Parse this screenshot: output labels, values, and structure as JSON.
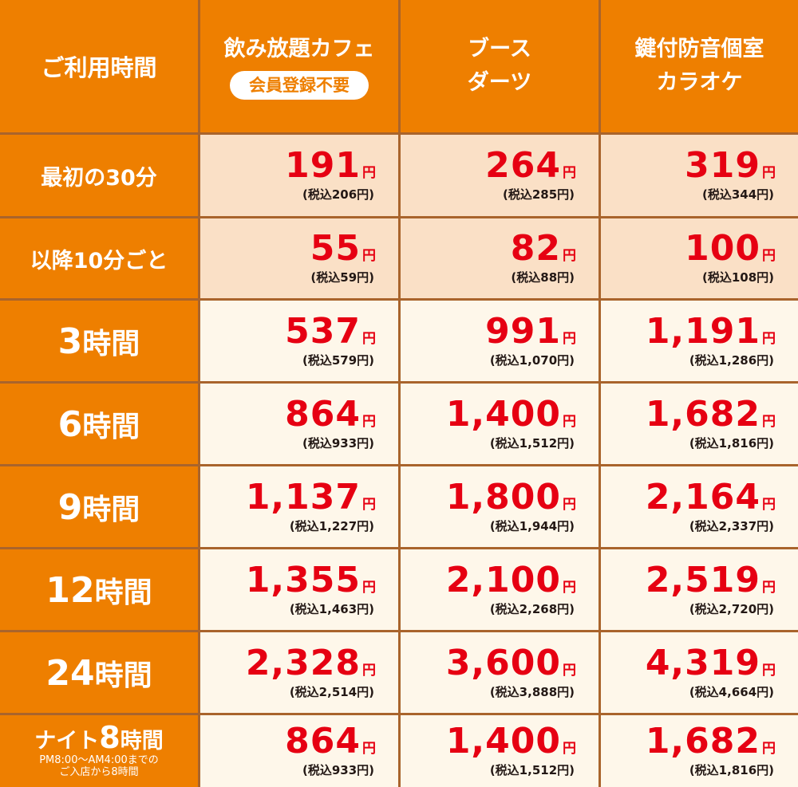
{
  "header": {
    "corner": "ご利用時間",
    "columns": [
      {
        "line1": "飲み放題カフェ",
        "badge": "会員登録不要"
      },
      {
        "line1": "ブース",
        "line2": "ダーツ"
      },
      {
        "line1": "鍵付防音個室",
        "line2": "カラオケ"
      }
    ]
  },
  "rows": [
    {
      "label": "最初の30分",
      "prices": [
        {
          "price": "191",
          "unit": "円",
          "tax": "(税込206円)"
        },
        {
          "price": "264",
          "unit": "円",
          "tax": "(税込285円)"
        },
        {
          "price": "319",
          "unit": "円",
          "tax": "(税込344円)"
        }
      ]
    },
    {
      "label": "以降10分ごと",
      "prices": [
        {
          "price": "55",
          "unit": "円",
          "tax": "(税込59円)"
        },
        {
          "price": "82",
          "unit": "円",
          "tax": "(税込88円)"
        },
        {
          "price": "100",
          "unit": "円",
          "tax": "(税込108円)"
        }
      ]
    },
    {
      "num": "3",
      "suffix": "時間",
      "prices": [
        {
          "price": "537",
          "unit": "円",
          "tax": "(税込579円)"
        },
        {
          "price": "991",
          "unit": "円",
          "tax": "(税込1,070円)"
        },
        {
          "price": "1,191",
          "unit": "円",
          "tax": "(税込1,286円)"
        }
      ]
    },
    {
      "num": "6",
      "suffix": "時間",
      "prices": [
        {
          "price": "864",
          "unit": "円",
          "tax": "(税込933円)"
        },
        {
          "price": "1,400",
          "unit": "円",
          "tax": "(税込1,512円)"
        },
        {
          "price": "1,682",
          "unit": "円",
          "tax": "(税込1,816円)"
        }
      ]
    },
    {
      "num": "9",
      "suffix": "時間",
      "prices": [
        {
          "price": "1,137",
          "unit": "円",
          "tax": "(税込1,227円)"
        },
        {
          "price": "1,800",
          "unit": "円",
          "tax": "(税込1,944円)"
        },
        {
          "price": "2,164",
          "unit": "円",
          "tax": "(税込2,337円)"
        }
      ]
    },
    {
      "num": "12",
      "suffix": "時間",
      "prices": [
        {
          "price": "1,355",
          "unit": "円",
          "tax": "(税込1,463円)"
        },
        {
          "price": "2,100",
          "unit": "円",
          "tax": "(税込2,268円)"
        },
        {
          "price": "2,519",
          "unit": "円",
          "tax": "(税込2,720円)"
        }
      ]
    },
    {
      "num": "24",
      "suffix": "時間",
      "prices": [
        {
          "price": "2,328",
          "unit": "円",
          "tax": "(税込2,514円)"
        },
        {
          "price": "3,600",
          "unit": "円",
          "tax": "(税込3,888円)"
        },
        {
          "price": "4,319",
          "unit": "円",
          "tax": "(税込4,664円)"
        }
      ]
    },
    {
      "prefix": "ナイト",
      "num": "8",
      "suffix": "時間",
      "note1": "PM8:00～AM4:00までの",
      "note2": "ご入店から8時間",
      "prices": [
        {
          "price": "864",
          "unit": "円",
          "tax": "(税込933円)"
        },
        {
          "price": "1,400",
          "unit": "円",
          "tax": "(税込1,512円)"
        },
        {
          "price": "1,682",
          "unit": "円",
          "tax": "(税込1,816円)"
        }
      ]
    }
  ]
}
